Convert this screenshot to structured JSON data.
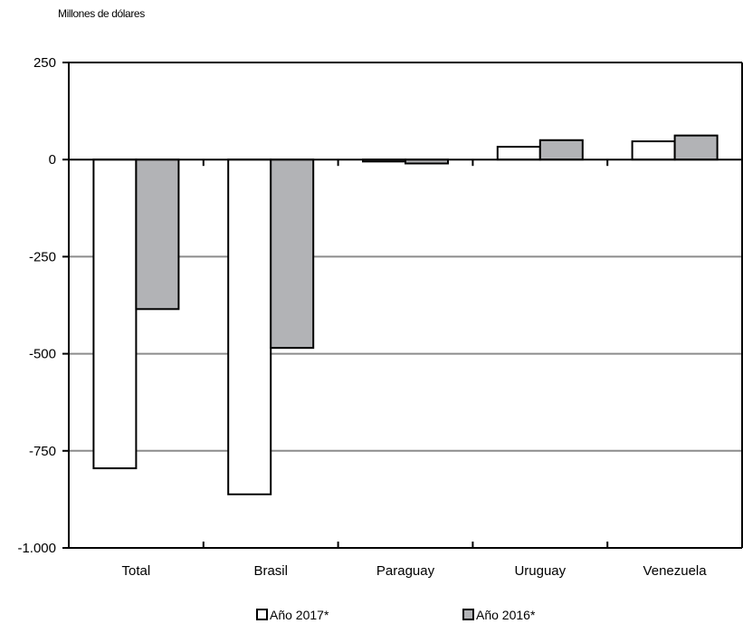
{
  "chart_data": {
    "type": "bar",
    "title": "",
    "unit_label": "Millones de dólares",
    "xlabel": "",
    "ylabel": "",
    "categories": [
      "Total",
      "Brasil",
      "Paraguay",
      "Uruguay",
      "Venezuela"
    ],
    "series": [
      {
        "name": "Año 2017*",
        "color": "#ffffff",
        "values": [
          -795,
          -862,
          -5,
          33,
          47
        ]
      },
      {
        "name": "Año 2016*",
        "color": "#b2b3b6",
        "values": [
          -385,
          -485,
          -10,
          50,
          62
        ]
      }
    ],
    "ylim": [
      -1000,
      250
    ],
    "yticks": [
      250,
      0,
      -250,
      -500,
      -750,
      -1000
    ],
    "ytick_labels": [
      "250",
      "0",
      "-250",
      "-500",
      "-750",
      "-1.000"
    ],
    "grid": "horizontal",
    "grid_color": "#8c8c8c",
    "legend_position": "bottom"
  }
}
